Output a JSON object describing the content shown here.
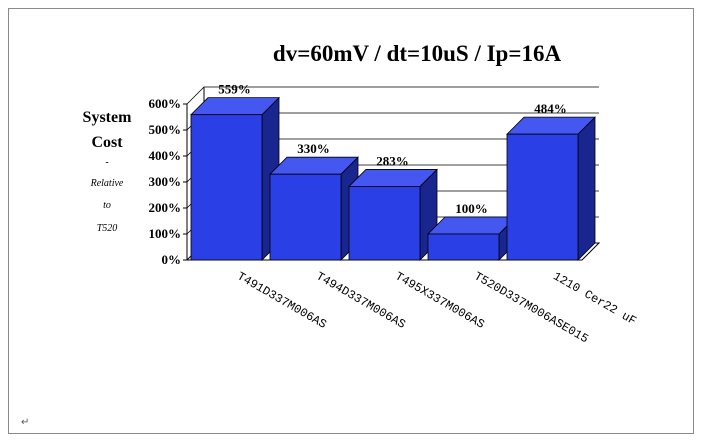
{
  "chart_data": {
    "type": "bar",
    "title": "dv=60mV / dt=10uS / Ip=16A",
    "ylabel_lines": [
      "System",
      "Cost",
      "-",
      "Relative",
      "to",
      "T520"
    ],
    "categories": [
      "T491D337M006AS",
      "T494D337M006AS",
      "T495X337M006AS",
      "T520D337M006ASE015",
      "1210 Cer22 uF"
    ],
    "values": [
      559,
      330,
      283,
      100,
      484
    ],
    "data_labels": [
      "559%",
      "330%",
      "283%",
      "100%",
      "484%"
    ],
    "ylim": [
      0,
      600
    ],
    "yticks": [
      "0%",
      "100%",
      "200%",
      "300%",
      "400%",
      "500%",
      "600%"
    ],
    "grid": true,
    "legend": "none",
    "bar_color": "#2a3fe6",
    "bar_side_color": "#1a2690",
    "bar_top_color": "#4457f0"
  },
  "corner_mark": "↵"
}
